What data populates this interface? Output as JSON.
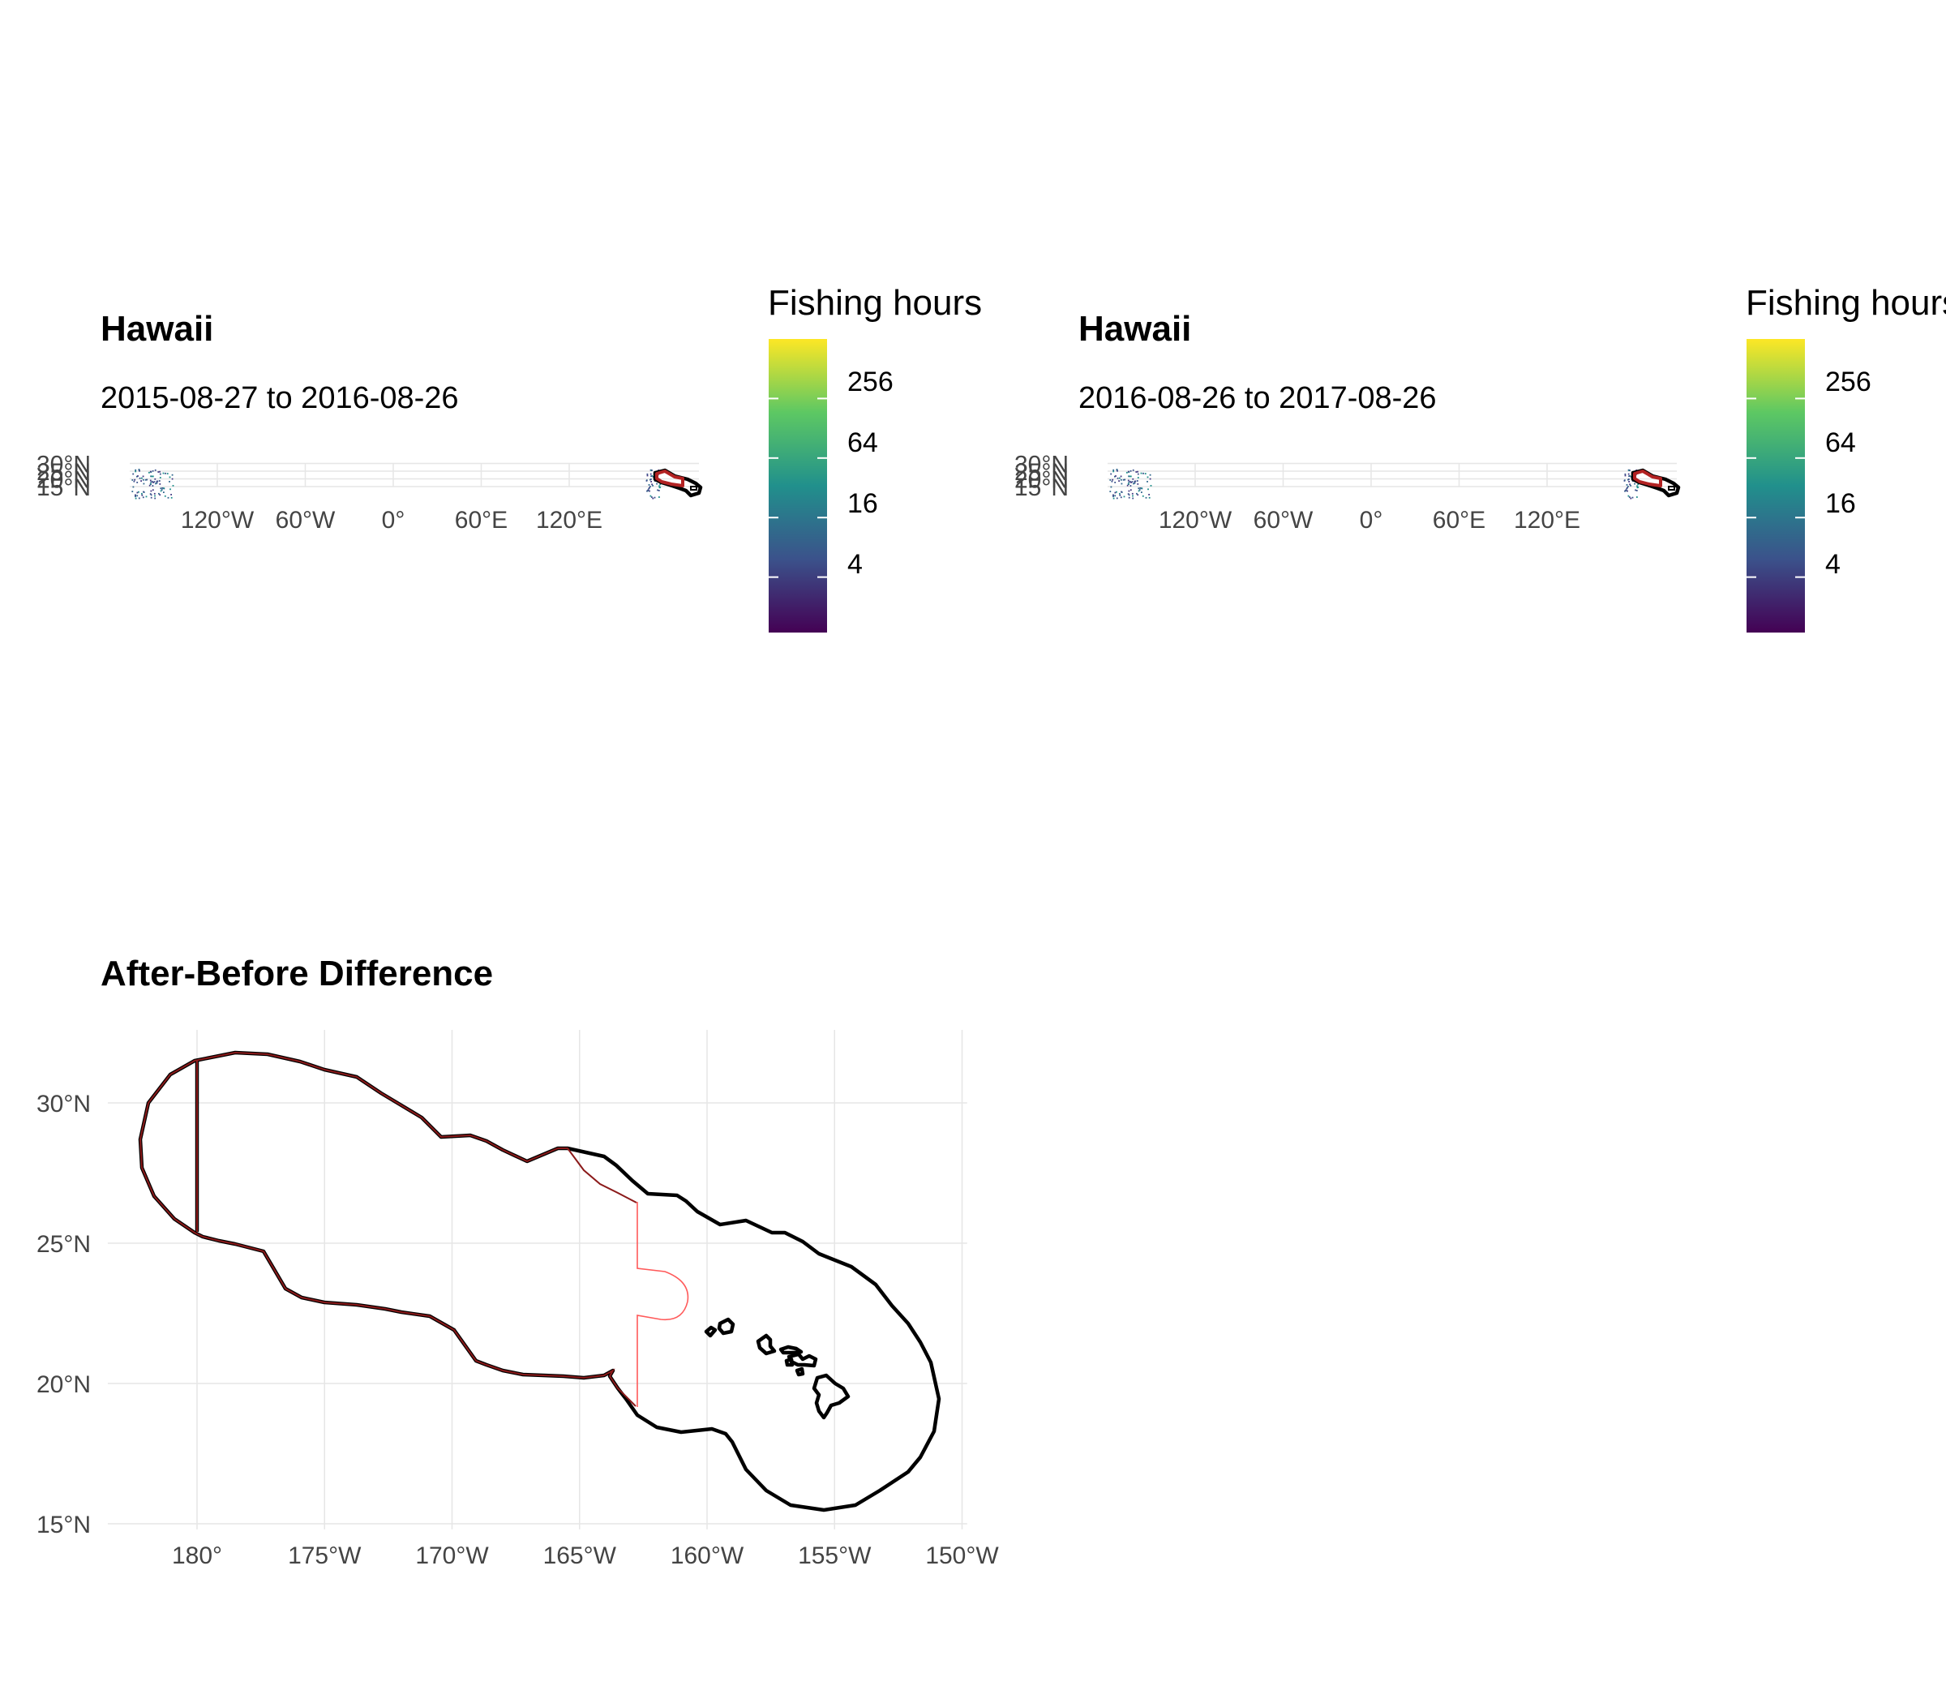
{
  "panels": [
    {
      "title": "Hawaii",
      "subtitle": "2015-08-27 to 2016-08-26",
      "legend": {
        "title": "Fishing hours",
        "labels": [
          "256",
          "64",
          "16",
          "4"
        ]
      },
      "x_ticks": [
        "120°W",
        "60°W",
        "0°",
        "60°E",
        "120°E"
      ],
      "y_ticks": [
        "30°N",
        "25°N",
        "20°N",
        "15°N"
      ]
    },
    {
      "title": "Hawaii",
      "subtitle": "2016-08-26 to 2017-08-26",
      "legend": {
        "title": "Fishing hours",
        "labels": [
          "256",
          "64",
          "16",
          "4"
        ]
      },
      "x_ticks": [
        "120°W",
        "60°W",
        "0°",
        "60°E",
        "120°E"
      ],
      "y_ticks": [
        "30°N",
        "25°N",
        "20°N",
        "15°N"
      ]
    }
  ],
  "difference": {
    "title": "After-Before Difference",
    "x_ticks": [
      "180°",
      "175°W",
      "170°W",
      "165°W",
      "160°W",
      "155°W",
      "150°W"
    ],
    "y_ticks": [
      "30°N",
      "25°N",
      "20°N",
      "15°N"
    ]
  },
  "colors": {
    "boundary": "#000000",
    "region_outline": "#8b1a1a",
    "monument_line": "#ff5a5a",
    "viridis": [
      "#440154",
      "#3b528b",
      "#21908c",
      "#5dc863",
      "#fde725"
    ]
  },
  "chart_data": [
    {
      "type": "heatmap",
      "title": "Hawaii",
      "subtitle": "2015-08-27 to 2016-08-26",
      "legend_title": "Fishing hours",
      "legend_scale": "log",
      "legend_breaks": [
        4,
        16,
        64,
        256
      ],
      "xlim": [
        -180,
        180
      ],
      "ylim": [
        15,
        30
      ],
      "x_breaks": [
        -120,
        -60,
        0,
        60,
        120
      ],
      "y_breaks": [
        15,
        20,
        25,
        30
      ],
      "grid": true,
      "legend_position": "right"
    },
    {
      "type": "heatmap",
      "title": "Hawaii",
      "subtitle": "2016-08-26 to 2017-08-26",
      "legend_title": "Fishing hours",
      "legend_scale": "log",
      "legend_breaks": [
        4,
        16,
        64,
        256
      ],
      "xlim": [
        -180,
        180
      ],
      "ylim": [
        15,
        30
      ],
      "x_breaks": [
        -120,
        -60,
        0,
        60,
        120
      ],
      "y_breaks": [
        15,
        20,
        25,
        30
      ],
      "grid": true,
      "legend_position": "right"
    },
    {
      "type": "map",
      "title": "After-Before Difference",
      "xlim": [
        -183.5,
        -149.8
      ],
      "ylim": [
        14.8,
        32.6
      ],
      "x_breaks": [
        -180,
        -175,
        -170,
        -165,
        -160,
        -155,
        -150
      ],
      "y_breaks": [
        15,
        20,
        25,
        30
      ],
      "grid": true
    }
  ]
}
